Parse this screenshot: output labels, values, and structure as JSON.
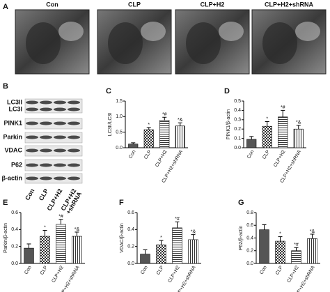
{
  "panel_a": {
    "label": "A",
    "images": [
      "Con",
      "CLP",
      "CLP+H2",
      "CLP+H2+shRNA"
    ]
  },
  "panel_b": {
    "label": "B",
    "proteins": [
      "LC3II",
      "LC3I",
      "PINK1",
      "Parkin",
      "VDAC",
      "P62",
      "β-actin"
    ],
    "groups": [
      [
        "Con"
      ],
      [
        "CLP"
      ],
      [
        "CLP+H2"
      ],
      [
        "CLP+H2",
        "+shRNA"
      ]
    ]
  },
  "chart_data": [
    {
      "type": "bar",
      "panel": "C",
      "y_label": "LC3II/LC3I",
      "categories": [
        "Con",
        "CLP",
        "CLP+H2",
        "CLP+H2+shRNA"
      ],
      "values": [
        0.12,
        0.58,
        0.88,
        0.7
      ],
      "errors": [
        0.04,
        0.07,
        0.1,
        0.1
      ],
      "annotations": [
        null,
        "*",
        "*#",
        "*&"
      ],
      "ylim": [
        0,
        1.5
      ],
      "yticks": [
        {
          "value": 0,
          "label": "0.0"
        },
        0.5,
        {
          "value": 1,
          "label": "1.0"
        },
        1.5
      ]
    },
    {
      "type": "bar",
      "panel": "D",
      "y_label": "PINK1/β-actin",
      "categories": [
        "Con",
        "CLP",
        "CLP+H2",
        "CLP+H2+shRNA"
      ],
      "values": [
        0.09,
        0.23,
        0.33,
        0.2
      ],
      "errors": [
        0.03,
        0.05,
        0.07,
        0.04
      ],
      "annotations": [
        null,
        "*",
        "*#",
        "*&"
      ],
      "ylim": [
        0,
        0.5
      ],
      "yticks": [
        {
          "value": 0,
          "label": "0.0"
        },
        0.1,
        0.2,
        0.3,
        0.4,
        0.5
      ]
    },
    {
      "type": "bar",
      "panel": "E",
      "y_label": "Parkin/β-actin",
      "categories": [
        "Con",
        "CLP",
        "CLP+H2",
        "CLP+H2+shRNA"
      ],
      "values": [
        0.18,
        0.32,
        0.46,
        0.32
      ],
      "errors": [
        0.05,
        0.07,
        0.06,
        0.05
      ],
      "annotations": [
        null,
        "*",
        "*#",
        "*&"
      ],
      "ylim": [
        0,
        0.6
      ],
      "yticks": [
        {
          "value": 0,
          "label": "0.0"
        },
        0.2,
        0.4,
        0.6
      ]
    },
    {
      "type": "bar",
      "panel": "F",
      "y_label": "VDAC/β-actin",
      "categories": [
        "Con",
        "CLP",
        "CLP+H2",
        "CLP+H2+shRNA"
      ],
      "values": [
        0.11,
        0.22,
        0.42,
        0.28
      ],
      "errors": [
        0.05,
        0.05,
        0.07,
        0.06
      ],
      "annotations": [
        null,
        "*",
        "*#",
        "*&"
      ],
      "ylim": [
        0,
        0.6
      ],
      "yticks": [
        {
          "value": 0,
          "label": "0.0"
        },
        0.2,
        0.4,
        0.6
      ]
    },
    {
      "type": "bar",
      "panel": "G",
      "y_label": "P62/β-actin",
      "categories": [
        "Con",
        "CLP",
        "CLP+H2",
        "CLP+H2+shRNA"
      ],
      "values": [
        0.53,
        0.35,
        0.2,
        0.39
      ],
      "errors": [
        0.08,
        0.07,
        0.05,
        0.07
      ],
      "annotations": [
        null,
        "*",
        "*#",
        "*&"
      ],
      "ylim": [
        0,
        0.8
      ],
      "yticks": [
        {
          "value": 0,
          "label": "0.0"
        },
        0.2,
        0.4,
        0.6,
        0.8
      ]
    }
  ]
}
